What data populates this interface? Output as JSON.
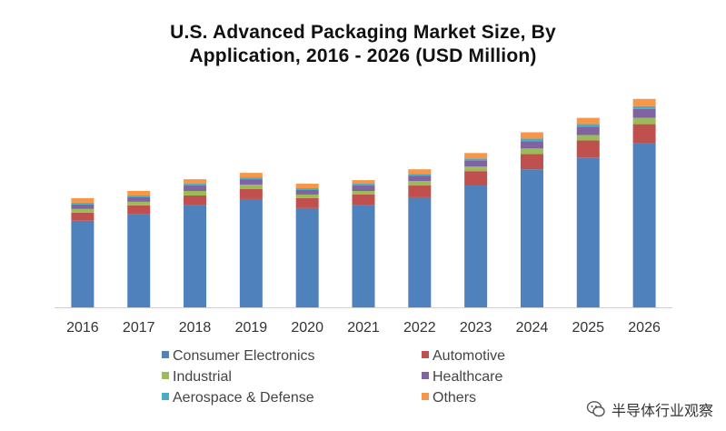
{
  "chart_data": {
    "type": "bar",
    "stacked": true,
    "title": "U.S. Advanced Packaging Market Size, By Application, 2016 - 2026 (USD Million)",
    "title_lines": [
      "U.S. Advanced Packaging Market Size, By",
      "Application,  2016 - 2026 (USD Million)"
    ],
    "categories": [
      "2016",
      "2017",
      "2018",
      "2019",
      "2020",
      "2021",
      "2022",
      "2023",
      "2024",
      "2025",
      "2026"
    ],
    "series": [
      {
        "name": "Consumer Electronics",
        "color": "#4f81bd",
        "values": [
          96,
          103,
          113,
          120,
          110,
          113,
          122,
          135,
          153,
          166,
          182
        ]
      },
      {
        "name": "Automotive",
        "color": "#c0504d",
        "values": [
          9,
          10,
          11,
          11,
          11,
          12,
          13,
          16,
          17,
          19,
          21
        ]
      },
      {
        "name": "Industrial",
        "color": "#9bbb59",
        "values": [
          4,
          4,
          5,
          5,
          4,
          4,
          5,
          5,
          6,
          6,
          7
        ]
      },
      {
        "name": "Healthcare",
        "color": "#8064a2",
        "values": [
          5,
          5,
          6,
          6,
          5,
          6,
          6,
          7,
          8,
          9,
          10
        ]
      },
      {
        "name": "Aerospace & Defense",
        "color": "#4bacc6",
        "values": [
          2,
          2,
          2,
          2,
          2,
          2,
          2,
          2,
          3,
          3,
          3
        ]
      },
      {
        "name": "Others",
        "color": "#f79646",
        "values": [
          5,
          5,
          5,
          5,
          5,
          4,
          5,
          6,
          7,
          7,
          8
        ]
      }
    ],
    "ylim": [
      0,
      260
    ],
    "grid": false,
    "legend_placement": "bottom"
  },
  "watermark": {
    "text": "半导体行业观察",
    "icon": "wechat-icon"
  }
}
